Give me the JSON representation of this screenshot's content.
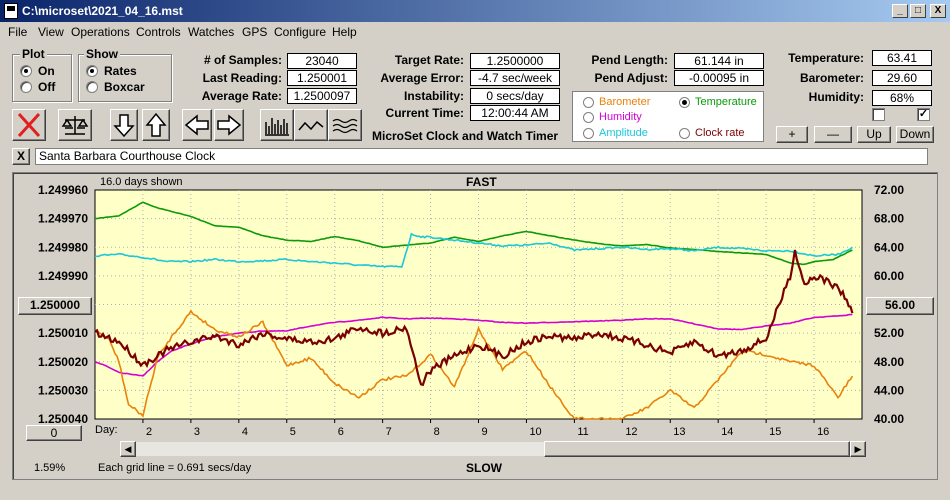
{
  "window": {
    "title": "C:\\microset\\2021_04_16.mst",
    "minimize": "_",
    "maximize": "□",
    "close": "X"
  },
  "menu": [
    "File",
    "View",
    "Operations",
    "Controls",
    "Watches",
    "GPS",
    "Configure",
    "Help"
  ],
  "plot": {
    "label": "Plot",
    "on": "On",
    "off": "Off",
    "selected": "On"
  },
  "show": {
    "label": "Show",
    "rates": "Rates",
    "boxcar": "Boxcar",
    "selected": "Rates"
  },
  "fields1": [
    {
      "label": "# of Samples:",
      "value": "23040"
    },
    {
      "label": "Last Reading:",
      "value": "1.250001"
    },
    {
      "label": "Average Rate:",
      "value": "1.2500097"
    }
  ],
  "fields2": [
    {
      "label": "Target Rate:",
      "value": "1.2500000"
    },
    {
      "label": "Average Error:",
      "value": "-4.7 sec/week"
    },
    {
      "label": "Instability:",
      "value": "0 secs/day"
    },
    {
      "label": "Current Time:",
      "value": "12:00:44 AM"
    }
  ],
  "app_caption": "MicroSet Clock and Watch Timer",
  "fields3": [
    {
      "label": "Pend Length:",
      "value": "61.144 in"
    },
    {
      "label": "Pend Adjust:",
      "value": "-0.00095 in"
    }
  ],
  "fields4": [
    {
      "label": "Temperature:",
      "value": "63.41"
    },
    {
      "label": "Barometer:",
      "value": "29.60"
    },
    {
      "label": "Humidity:",
      "value": "68%"
    }
  ],
  "sensors": [
    {
      "name": "Barometer",
      "color": "#e8820c",
      "selected": false
    },
    {
      "name": "Temperature",
      "color": "#0a9a0a",
      "selected": true
    },
    {
      "name": "Humidity",
      "color": "#d400d4",
      "selected": false
    },
    {
      "name": "Amplitude",
      "color": "#1ac8d8",
      "selected": false
    },
    {
      "name": "Clock rate",
      "color": "#7a0000",
      "selected": false
    }
  ],
  "checkboxes": [
    {
      "checked": false
    },
    {
      "checked": true
    }
  ],
  "scale_buttons": [
    "+",
    "—",
    "Up",
    "Down"
  ],
  "clock_name": "Santa Barbara Courthouse Clock",
  "clock_close": "X",
  "chart_data": {
    "type": "line",
    "days_shown": "16.0 days shown",
    "top_label": "FAST",
    "bottom_label": "SLOW",
    "grid_note": "Each grid line = 0.691 secs/day",
    "percent": "1.59%",
    "day_prefix": "Day:",
    "left_ticks": [
      "1.249960",
      "1.249970",
      "1.249980",
      "1.249990",
      "1.250000",
      "1.250010",
      "1.250020",
      "1.250030",
      "1.250040"
    ],
    "right_ticks": [
      "72.00",
      "68.00",
      "64.00",
      "60.00",
      "56.00",
      "52.00",
      "48.00",
      "44.00",
      "40.00"
    ],
    "center_left": "1.250000",
    "center_right": "56.00",
    "zero_button": "0",
    "x_ticks": [
      "2",
      "3",
      "4",
      "5",
      "6",
      "7",
      "8",
      "9",
      "10",
      "11",
      "12",
      "13",
      "14",
      "15",
      "16"
    ],
    "xlim": [
      1,
      17
    ],
    "ylim_left": [
      1.24996,
      1.25004
    ],
    "ylim_right": [
      40,
      72
    ],
    "series": [
      {
        "name": "Temperature",
        "color": "#0a9a0a",
        "axis": "right",
        "x": [
          1,
          1.5,
          2,
          2.3,
          2.6,
          3,
          3.5,
          4,
          4.5,
          5,
          5.5,
          6,
          6.5,
          7,
          7.5,
          8,
          8.5,
          9,
          9.5,
          10,
          10.5,
          11,
          11.5,
          12,
          12.5,
          13,
          13.5,
          14,
          14.5,
          15,
          15.5,
          15.8,
          16,
          16.4,
          16.8
        ],
        "y": [
          68.0,
          68.4,
          70.3,
          69.5,
          69.0,
          68.3,
          67.0,
          66.8,
          65.6,
          65.0,
          64.8,
          65.5,
          64.9,
          64.0,
          64.3,
          64.6,
          65.4,
          64.8,
          65.6,
          66.2,
          65.6,
          65.0,
          64.5,
          64.2,
          64.4,
          63.9,
          63.7,
          63.4,
          63.2,
          63.0,
          61.8,
          61.6,
          62.0,
          62.3,
          63.6
        ]
      },
      {
        "name": "Amplitude",
        "color": "#1ac8d8",
        "axis": "right",
        "x": [
          1,
          1.5,
          2,
          2.5,
          3,
          3.5,
          4,
          4.5,
          5,
          5.5,
          6,
          6.5,
          7,
          7.4,
          7.6,
          7.8,
          8,
          8.5,
          9,
          9.5,
          10,
          10.5,
          11,
          11.5,
          12,
          12.5,
          13,
          13.5,
          14,
          14.5,
          15,
          15.5,
          16,
          16.5,
          16.8
        ],
        "y": [
          62.8,
          63.0,
          62.6,
          62.0,
          62.0,
          62.3,
          62.0,
          62.1,
          62.3,
          62.0,
          61.8,
          61.5,
          61.3,
          61.3,
          65.8,
          65.5,
          65.4,
          65.0,
          64.6,
          64.2,
          64.3,
          64.6,
          63.6,
          63.8,
          64.0,
          63.7,
          63.8,
          63.5,
          64.0,
          63.8,
          63.5,
          63.5,
          62.8,
          63.0,
          64.0
        ]
      },
      {
        "name": "Humidity",
        "color": "#d400d4",
        "axis": "right",
        "x": [
          1,
          1.2,
          1.5,
          2,
          2.3,
          2.6,
          3,
          3.5,
          4,
          4.5,
          5,
          5.5,
          6,
          6.5,
          7,
          7.5,
          8,
          8.5,
          9,
          9.5,
          10,
          10.5,
          11,
          11.5,
          12,
          12.5,
          13,
          13.5,
          14,
          14.5,
          15,
          15.5,
          16,
          16.5,
          16.8
        ],
        "y": [
          48.0,
          47.5,
          46.5,
          46.0,
          48.0,
          49.5,
          50.5,
          51.5,
          52.0,
          52.3,
          52.3,
          53.0,
          53.5,
          53.8,
          54.2,
          54.0,
          54.1,
          54.0,
          53.8,
          53.5,
          53.4,
          53.5,
          53.6,
          53.7,
          53.8,
          54.0,
          54.0,
          53.3,
          52.6,
          52.5,
          53.0,
          53.4,
          54.2,
          54.4,
          54.6
        ]
      },
      {
        "name": "Barometer",
        "color": "#e8820c",
        "axis": "right",
        "x": [
          1,
          1.3,
          1.5,
          1.7,
          2,
          2.3,
          2.6,
          3,
          3.3,
          3.5,
          4,
          4.5,
          5,
          5.5,
          6,
          6.5,
          7,
          7.5,
          8,
          8.5,
          9,
          9.5,
          10,
          10.5,
          11,
          11.5,
          12,
          12.5,
          13,
          13.5,
          14,
          14.5,
          15,
          15.5,
          16,
          16.5,
          16.8
        ],
        "y": [
          52.5,
          51.0,
          48.0,
          42.0,
          40.5,
          48.5,
          51.5,
          55.0,
          53.5,
          52.5,
          51.5,
          53.5,
          47.5,
          48.5,
          45.0,
          43.0,
          45.5,
          46.0,
          49.0,
          44.5,
          52.5,
          47.0,
          49.5,
          44.5,
          40.0,
          40.0,
          40.0,
          41.5,
          44.0,
          41.5,
          45.5,
          49.5,
          49.0,
          48.0,
          47.5,
          43.0,
          46.0
        ]
      },
      {
        "name": "Clock rate",
        "color": "#7a0000",
        "axis": "left",
        "x": [
          1,
          1.5,
          2,
          2.5,
          3,
          3.5,
          4,
          4.5,
          5,
          5.5,
          6,
          6.5,
          7,
          7.5,
          7.8,
          8,
          8.5,
          9,
          9.5,
          10,
          10.5,
          11,
          11.5,
          12,
          12.5,
          13,
          13.5,
          14,
          14.5,
          15,
          15.5,
          15.6,
          15.8,
          16,
          16.3,
          16.6,
          16.8
        ],
        "y": [
          1.25001,
          1.250013,
          1.250021,
          1.250016,
          1.250013,
          1.250011,
          1.250014,
          1.25001,
          1.250012,
          1.250013,
          1.250012,
          1.250008,
          1.25001,
          1.250008,
          1.250028,
          1.250023,
          1.250018,
          1.250014,
          1.250018,
          1.250013,
          1.250011,
          1.250012,
          1.25001,
          1.250012,
          1.250014,
          1.250017,
          1.250013,
          1.250018,
          1.250016,
          1.250012,
          1.24999,
          1.249981,
          1.249993,
          1.24999,
          1.249992,
          1.249996,
          1.250003
        ]
      }
    ]
  }
}
